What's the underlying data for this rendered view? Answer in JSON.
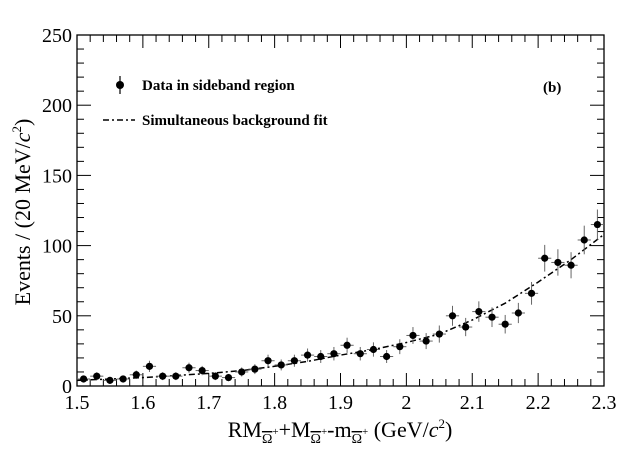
{
  "chart_data": {
    "type": "scatter",
    "panel_label": "(b)",
    "xlim": [
      1.5,
      2.3
    ],
    "ylim": [
      0,
      250
    ],
    "x_ticks": [
      "1.5",
      "1.6",
      "1.7",
      "1.8",
      "1.9",
      "2",
      "2.1",
      "2.2",
      "2.3"
    ],
    "y_ticks": [
      "0",
      "50",
      "100",
      "150",
      "200",
      "250"
    ],
    "xlabel_parts": {
      "rm": "RM",
      "omega_bar": "Ω",
      "plus": "+",
      "plus_m": "+M",
      "minus_m": "-m",
      "unit_open": "(GeV/",
      "unit_c": "c",
      "unit_exp": "2",
      "unit_close": ")"
    },
    "ylabel_parts": {
      "prefix": "Events / (20 MeV/",
      "c": "c",
      "exp": "2",
      "close": ")"
    },
    "series": [
      {
        "name": "Data in sideband region",
        "style": "points-with-errors",
        "x": [
          1.51,
          1.53,
          1.55,
          1.57,
          1.59,
          1.61,
          1.63,
          1.65,
          1.67,
          1.69,
          1.71,
          1.73,
          1.75,
          1.77,
          1.79,
          1.81,
          1.83,
          1.85,
          1.87,
          1.89,
          1.91,
          1.93,
          1.95,
          1.97,
          1.99,
          2.01,
          2.03,
          2.05,
          2.07,
          2.09,
          2.11,
          2.13,
          2.15,
          2.17,
          2.19,
          2.21,
          2.23,
          2.25,
          2.27,
          2.29
        ],
        "y": [
          5,
          7,
          4,
          5,
          8,
          14,
          7,
          7,
          13,
          11,
          7,
          6,
          10,
          12,
          18,
          15,
          18,
          22,
          21,
          23,
          29,
          23,
          26,
          21,
          28,
          36,
          32,
          37,
          50,
          42,
          53,
          49,
          44,
          52,
          66,
          91,
          88,
          86,
          104,
          115
        ],
        "yerr": [
          2.5,
          2.8,
          2.2,
          2.5,
          3.0,
          4.0,
          2.8,
          2.8,
          3.6,
          3.3,
          2.8,
          2.6,
          3.2,
          3.5,
          4.3,
          3.9,
          4.3,
          4.7,
          4.6,
          4.8,
          5.4,
          4.8,
          5.1,
          4.6,
          5.3,
          6.0,
          5.7,
          6.1,
          7.1,
          6.5,
          7.3,
          7.0,
          6.6,
          7.2,
          8.1,
          9.5,
          9.4,
          9.3,
          10.2,
          10.7
        ],
        "xerr": 0.01
      },
      {
        "name": "Simultaneous background fit",
        "style": "dash-dot-line",
        "x": [
          1.5,
          1.55,
          1.6,
          1.65,
          1.7,
          1.75,
          1.8,
          1.85,
          1.9,
          1.95,
          2.0,
          2.05,
          2.1,
          2.15,
          2.2,
          2.25,
          2.3
        ],
        "y": [
          4,
          5,
          6,
          7.5,
          9,
          11,
          14,
          17.5,
          22,
          26,
          31,
          37,
          47,
          59,
          74,
          90,
          108
        ]
      }
    ],
    "colors": {
      "ink": "#000000",
      "error_bar": "#666666"
    }
  }
}
